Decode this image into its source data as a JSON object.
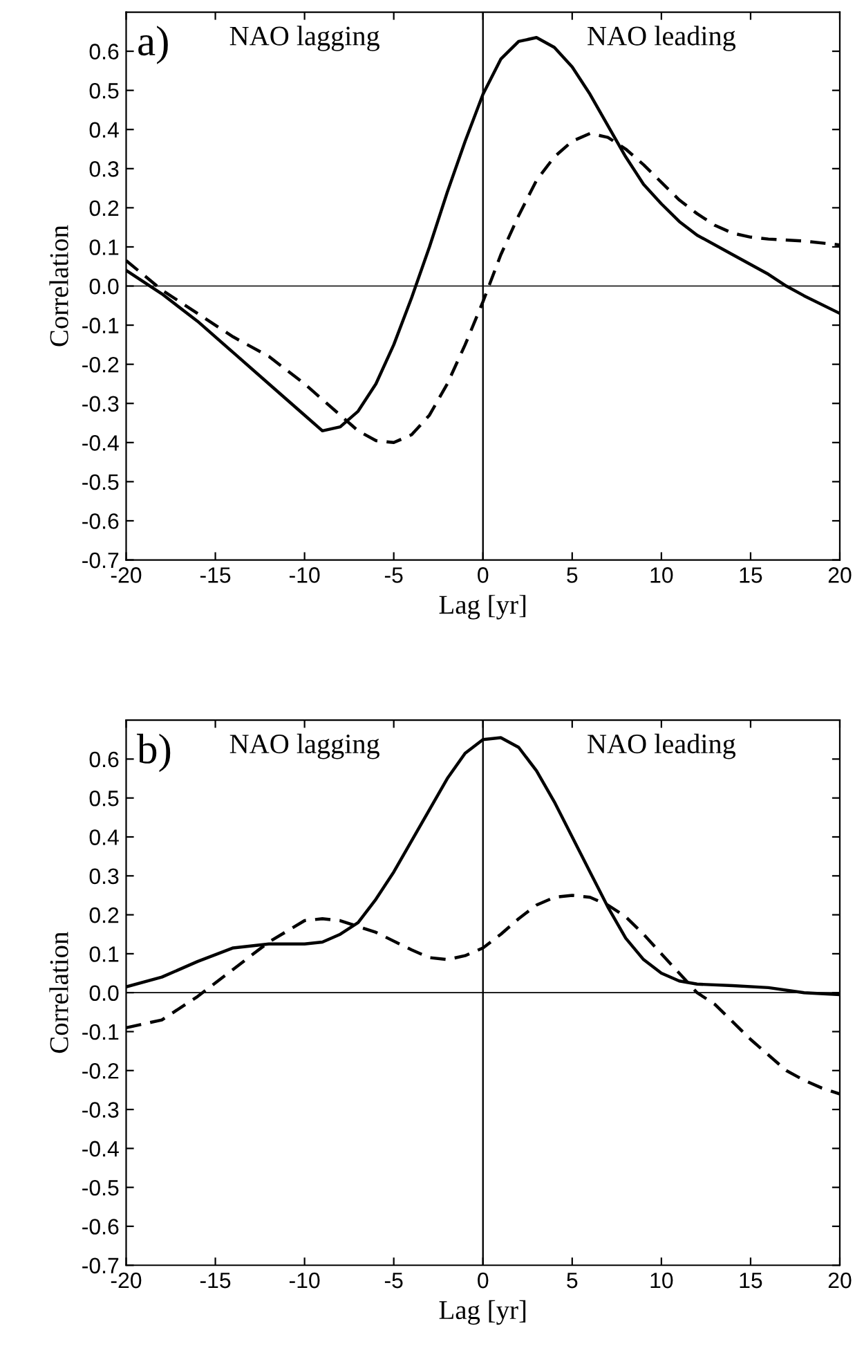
{
  "chart_data": [
    {
      "type": "line",
      "xlabel": "Lag [yr]",
      "ylabel": "Correlation",
      "annotations": [
        "a)",
        "NAO lagging",
        "NAO leading"
      ],
      "xlim": [
        -20,
        20
      ],
      "ylim": [
        -0.7,
        0.7
      ],
      "xticks": [
        -20,
        -15,
        -10,
        -5,
        0,
        5,
        10,
        15,
        20
      ],
      "yticks": [
        {
          "value": -0.7,
          "label": "-0.7"
        },
        {
          "value": -0.6,
          "label": "-0.6"
        },
        {
          "value": -0.5,
          "label": "-0.5"
        },
        {
          "value": -0.4,
          "label": "-0.4"
        },
        {
          "value": -0.3,
          "label": "-0.3"
        },
        {
          "value": -0.2,
          "label": "-0.2"
        },
        {
          "value": -0.1,
          "label": "-0.1"
        },
        {
          "value": 0.0,
          "label": "0.0"
        },
        {
          "value": 0.1,
          "label": "0.1"
        },
        {
          "value": 0.2,
          "label": "0.2"
        },
        {
          "value": 0.3,
          "label": "0.3"
        },
        {
          "value": 0.4,
          "label": "0.4"
        },
        {
          "value": 0.5,
          "label": "0.5"
        },
        {
          "value": 0.6,
          "label": "0.6"
        }
      ],
      "grid": false,
      "legend": false,
      "ref_lines": [
        {
          "axis": "y",
          "value": 0,
          "color": "#000000"
        },
        {
          "axis": "x",
          "value": 0,
          "color": "#000000"
        }
      ],
      "series": [
        {
          "color": "#000000",
          "line_style": "solid",
          "x": [
            -20,
            -18,
            -16,
            -14,
            -12,
            -10,
            -9,
            -8,
            -7,
            -6,
            -5,
            -4,
            -3,
            -2,
            -1,
            0,
            1,
            2,
            3,
            4,
            5,
            6,
            7,
            8,
            9,
            10,
            11,
            12,
            14,
            16,
            17,
            18,
            20
          ],
          "values": [
            0.04,
            -0.02,
            -0.09,
            -0.17,
            -0.25,
            -0.33,
            -0.37,
            -0.36,
            -0.32,
            -0.25,
            -0.15,
            -0.03,
            0.1,
            0.24,
            0.37,
            0.49,
            0.58,
            0.625,
            0.635,
            0.61,
            0.56,
            0.49,
            0.41,
            0.33,
            0.26,
            0.21,
            0.165,
            0.13,
            0.08,
            0.03,
            0.0,
            -0.025,
            -0.07
          ]
        },
        {
          "color": "#000000",
          "line_style": "dashed",
          "x": [
            -20,
            -18,
            -16,
            -14,
            -12,
            -10,
            -8,
            -7,
            -6,
            -5,
            -4,
            -3,
            -2,
            -1,
            0,
            1,
            2,
            3,
            4,
            5,
            6,
            7,
            8,
            9,
            10,
            11,
            12,
            13,
            14,
            15,
            16,
            18,
            20
          ],
          "values": [
            0.065,
            -0.01,
            -0.07,
            -0.13,
            -0.18,
            -0.25,
            -0.33,
            -0.37,
            -0.395,
            -0.4,
            -0.38,
            -0.33,
            -0.25,
            -0.15,
            -0.04,
            0.08,
            0.18,
            0.27,
            0.33,
            0.37,
            0.39,
            0.38,
            0.35,
            0.31,
            0.265,
            0.22,
            0.185,
            0.155,
            0.135,
            0.125,
            0.12,
            0.115,
            0.105
          ]
        }
      ]
    },
    {
      "type": "line",
      "xlabel": "Lag [yr]",
      "ylabel": "Correlation",
      "annotations": [
        "b)",
        "NAO lagging",
        "NAO leading"
      ],
      "xlim": [
        -20,
        20
      ],
      "ylim": [
        -0.7,
        0.7
      ],
      "xticks": [
        -20,
        -15,
        -10,
        -5,
        0,
        5,
        10,
        15,
        20
      ],
      "yticks": [
        {
          "value": -0.7,
          "label": "-0.7"
        },
        {
          "value": -0.6,
          "label": "-0.6"
        },
        {
          "value": -0.5,
          "label": "-0.5"
        },
        {
          "value": -0.4,
          "label": "-0.4"
        },
        {
          "value": -0.3,
          "label": "-0.3"
        },
        {
          "value": -0.2,
          "label": "-0.2"
        },
        {
          "value": -0.1,
          "label": "-0.1"
        },
        {
          "value": 0.0,
          "label": "0.0"
        },
        {
          "value": 0.1,
          "label": "0.1"
        },
        {
          "value": 0.2,
          "label": "0.2"
        },
        {
          "value": 0.3,
          "label": "0.3"
        },
        {
          "value": 0.4,
          "label": "0.4"
        },
        {
          "value": 0.5,
          "label": "0.5"
        },
        {
          "value": 0.6,
          "label": "0.6"
        }
      ],
      "grid": false,
      "legend": false,
      "ref_lines": [
        {
          "axis": "y",
          "value": 0,
          "color": "#000000"
        },
        {
          "axis": "x",
          "value": 0,
          "color": "#000000"
        }
      ],
      "series": [
        {
          "color": "#000000",
          "line_style": "solid",
          "x": [
            -20,
            -18,
            -16,
            -14,
            -12,
            -10,
            -9,
            -8,
            -7,
            -6,
            -5,
            -4,
            -3,
            -2,
            -1,
            0,
            1,
            2,
            3,
            4,
            5,
            6,
            7,
            8,
            9,
            10,
            11,
            12,
            14,
            16,
            18,
            20
          ],
          "values": [
            0.015,
            0.04,
            0.08,
            0.115,
            0.125,
            0.125,
            0.13,
            0.15,
            0.18,
            0.24,
            0.31,
            0.39,
            0.47,
            0.55,
            0.615,
            0.65,
            0.655,
            0.63,
            0.57,
            0.49,
            0.4,
            0.31,
            0.22,
            0.14,
            0.085,
            0.05,
            0.03,
            0.022,
            0.018,
            0.013,
            0.0,
            -0.005
          ]
        },
        {
          "color": "#000000",
          "line_style": "dashed",
          "x": [
            -20,
            -18,
            -16,
            -14,
            -12,
            -10,
            -9,
            -8,
            -6,
            -4,
            -3,
            -2,
            -1,
            0,
            1,
            2,
            3,
            4,
            5,
            6,
            7,
            8,
            9,
            10,
            11,
            12,
            13,
            14,
            15,
            16,
            17,
            18,
            19,
            20
          ],
          "values": [
            -0.09,
            -0.07,
            -0.01,
            0.06,
            0.13,
            0.185,
            0.19,
            0.185,
            0.155,
            0.11,
            0.09,
            0.085,
            0.095,
            0.115,
            0.15,
            0.19,
            0.225,
            0.245,
            0.25,
            0.245,
            0.225,
            0.195,
            0.15,
            0.1,
            0.05,
            0.0,
            -0.03,
            -0.075,
            -0.12,
            -0.16,
            -0.2,
            -0.225,
            -0.245,
            -0.26
          ]
        }
      ]
    }
  ]
}
